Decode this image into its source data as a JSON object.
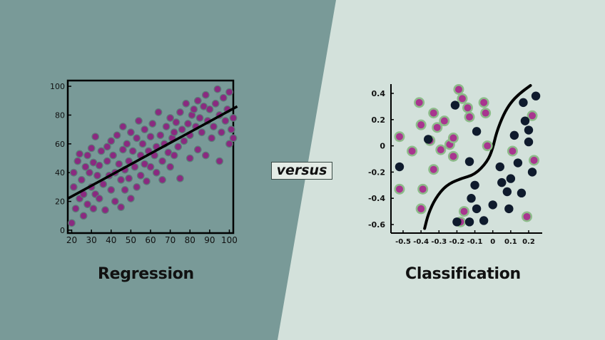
{
  "colors": {
    "left_bg": "#799a98",
    "right_bg": "#d3e1db",
    "regression_point": "#8a2a80",
    "class_a_fill": "#a8358f",
    "class_a_halo": "#8dbb8a",
    "class_b_fill": "#0f1b2d",
    "line": "#000000"
  },
  "versus_label": "versus",
  "chart_data": [
    {
      "type": "scatter",
      "title": "Regression",
      "xlabel": "",
      "ylabel": "",
      "xlim": [
        18,
        102
      ],
      "ylim": [
        -2,
        104
      ],
      "xticks": [
        20,
        30,
        40,
        50,
        60,
        70,
        80,
        90,
        100
      ],
      "yticks": [
        0,
        20,
        40,
        60,
        80,
        100
      ],
      "grid": false,
      "trend_line": [
        [
          18,
          22
        ],
        [
          104,
          86
        ]
      ],
      "points": [
        [
          20,
          5
        ],
        [
          21,
          40
        ],
        [
          21,
          30
        ],
        [
          22,
          15
        ],
        [
          23,
          48
        ],
        [
          24,
          53
        ],
        [
          24,
          22
        ],
        [
          25,
          35
        ],
        [
          26,
          10
        ],
        [
          26,
          25
        ],
        [
          27,
          44
        ],
        [
          28,
          18
        ],
        [
          28,
          52
        ],
        [
          29,
          40
        ],
        [
          30,
          30
        ],
        [
          30,
          57
        ],
        [
          31,
          47
        ],
        [
          31,
          15
        ],
        [
          32,
          65
        ],
        [
          32,
          25
        ],
        [
          33,
          38
        ],
        [
          34,
          45
        ],
        [
          34,
          22
        ],
        [
          35,
          55
        ],
        [
          36,
          32
        ],
        [
          37,
          14
        ],
        [
          38,
          48
        ],
        [
          38,
          58
        ],
        [
          39,
          38
        ],
        [
          40,
          28
        ],
        [
          40,
          62
        ],
        [
          41,
          52
        ],
        [
          42,
          40
        ],
        [
          42,
          20
        ],
        [
          43,
          66
        ],
        [
          44,
          46
        ],
        [
          45,
          35
        ],
        [
          45,
          16
        ],
        [
          46,
          72
        ],
        [
          46,
          56
        ],
        [
          47,
          28
        ],
        [
          47,
          42
        ],
        [
          48,
          60
        ],
        [
          49,
          48
        ],
        [
          49,
          36
        ],
        [
          50,
          68
        ],
        [
          50,
          22
        ],
        [
          51,
          55
        ],
        [
          52,
          44
        ],
        [
          53,
          64
        ],
        [
          53,
          30
        ],
        [
          54,
          76
        ],
        [
          55,
          52
        ],
        [
          55,
          38
        ],
        [
          56,
          60
        ],
        [
          57,
          46
        ],
        [
          57,
          70
        ],
        [
          58,
          34
        ],
        [
          59,
          55
        ],
        [
          60,
          65
        ],
        [
          60,
          44
        ],
        [
          61,
          74
        ],
        [
          62,
          52
        ],
        [
          63,
          58
        ],
        [
          63,
          40
        ],
        [
          64,
          82
        ],
        [
          65,
          66
        ],
        [
          66,
          48
        ],
        [
          66,
          35
        ],
        [
          67,
          60
        ],
        [
          68,
          72
        ],
        [
          69,
          54
        ],
        [
          70,
          78
        ],
        [
          70,
          44
        ],
        [
          71,
          64
        ],
        [
          72,
          68
        ],
        [
          72,
          52
        ],
        [
          73,
          75
        ],
        [
          74,
          58
        ],
        [
          75,
          82
        ],
        [
          75,
          36
        ],
        [
          76,
          70
        ],
        [
          77,
          62
        ],
        [
          78,
          88
        ],
        [
          79,
          74
        ],
        [
          80,
          66
        ],
        [
          80,
          50
        ],
        [
          81,
          80
        ],
        [
          82,
          84
        ],
        [
          83,
          72
        ],
        [
          84,
          90
        ],
        [
          84,
          56
        ],
        [
          85,
          78
        ],
        [
          86,
          68
        ],
        [
          87,
          86
        ],
        [
          88,
          94
        ],
        [
          88,
          52
        ],
        [
          89,
          76
        ],
        [
          90,
          84
        ],
        [
          91,
          64
        ],
        [
          92,
          72
        ],
        [
          93,
          88
        ],
        [
          94,
          98
        ],
        [
          95,
          80
        ],
        [
          95,
          48
        ],
        [
          96,
          68
        ],
        [
          97,
          92
        ],
        [
          98,
          76
        ],
        [
          99,
          84
        ],
        [
          100,
          60
        ],
        [
          100,
          96
        ],
        [
          101,
          70
        ],
        [
          102,
          78
        ],
        [
          102,
          64
        ]
      ]
    },
    {
      "type": "scatter",
      "title": "Classification",
      "xlabel": "",
      "ylabel": "",
      "xlim": [
        -0.55,
        0.25
      ],
      "ylim": [
        -0.66,
        0.45
      ],
      "xticks": [
        "-0.5",
        "-0.4",
        "-0.3",
        "-0.2",
        "-0.1",
        "0",
        "0.1",
        "0.2"
      ],
      "yticks": [
        "0.4",
        "0.2",
        "0",
        "-0.2",
        "-0.4",
        "-0.6"
      ],
      "grid": false,
      "decision_boundary": [
        [
          -0.38,
          -0.63
        ],
        [
          -0.36,
          -0.52
        ],
        [
          -0.32,
          -0.4
        ],
        [
          -0.26,
          -0.3
        ],
        [
          -0.18,
          -0.25
        ],
        [
          -0.1,
          -0.22
        ],
        [
          -0.03,
          -0.12
        ],
        [
          0.0,
          -0.02
        ],
        [
          0.02,
          0.1
        ],
        [
          0.06,
          0.24
        ],
        [
          0.1,
          0.33
        ],
        [
          0.15,
          0.4
        ],
        [
          0.21,
          0.46
        ]
      ],
      "class_a": [
        [
          -0.52,
          0.07
        ],
        [
          -0.45,
          -0.04
        ],
        [
          -0.41,
          0.33
        ],
        [
          -0.4,
          0.16
        ],
        [
          -0.39,
          -0.33
        ],
        [
          -0.4,
          -0.48
        ],
        [
          -0.35,
          0.04
        ],
        [
          -0.33,
          -0.18
        ],
        [
          -0.33,
          0.25
        ],
        [
          -0.31,
          0.14
        ],
        [
          -0.29,
          -0.03
        ],
        [
          -0.27,
          0.19
        ],
        [
          -0.24,
          0.01
        ],
        [
          -0.22,
          0.06
        ],
        [
          -0.22,
          -0.08
        ],
        [
          -0.19,
          0.43
        ],
        [
          -0.17,
          0.36
        ],
        [
          -0.16,
          -0.5
        ],
        [
          -0.14,
          0.29
        ],
        [
          -0.13,
          0.22
        ],
        [
          -0.05,
          0.33
        ],
        [
          -0.04,
          0.25
        ],
        [
          -0.03,
          0.0
        ],
        [
          0.11,
          -0.04
        ],
        [
          0.19,
          -0.54
        ],
        [
          0.22,
          0.23
        ],
        [
          0.23,
          -0.11
        ],
        [
          -0.52,
          -0.33
        ],
        [
          -0.18,
          -0.58
        ]
      ],
      "class_b": [
        [
          -0.52,
          -0.16
        ],
        [
          -0.36,
          0.05
        ],
        [
          -0.21,
          0.31
        ],
        [
          -0.13,
          -0.12
        ],
        [
          -0.09,
          0.11
        ],
        [
          -0.1,
          -0.3
        ],
        [
          -0.12,
          -0.4
        ],
        [
          -0.13,
          -0.58
        ],
        [
          -0.09,
          -0.48
        ],
        [
          -0.05,
          -0.57
        ],
        [
          0.0,
          -0.45
        ],
        [
          0.04,
          -0.16
        ],
        [
          0.05,
          -0.28
        ],
        [
          0.08,
          -0.35
        ],
        [
          0.09,
          -0.48
        ],
        [
          0.1,
          -0.25
        ],
        [
          0.12,
          0.08
        ],
        [
          0.14,
          -0.13
        ],
        [
          0.16,
          -0.36
        ],
        [
          0.17,
          0.33
        ],
        [
          0.18,
          0.19
        ],
        [
          0.2,
          0.12
        ],
        [
          0.2,
          0.03
        ],
        [
          0.22,
          -0.2
        ],
        [
          0.24,
          0.38
        ],
        [
          -0.2,
          -0.58
        ]
      ]
    }
  ]
}
